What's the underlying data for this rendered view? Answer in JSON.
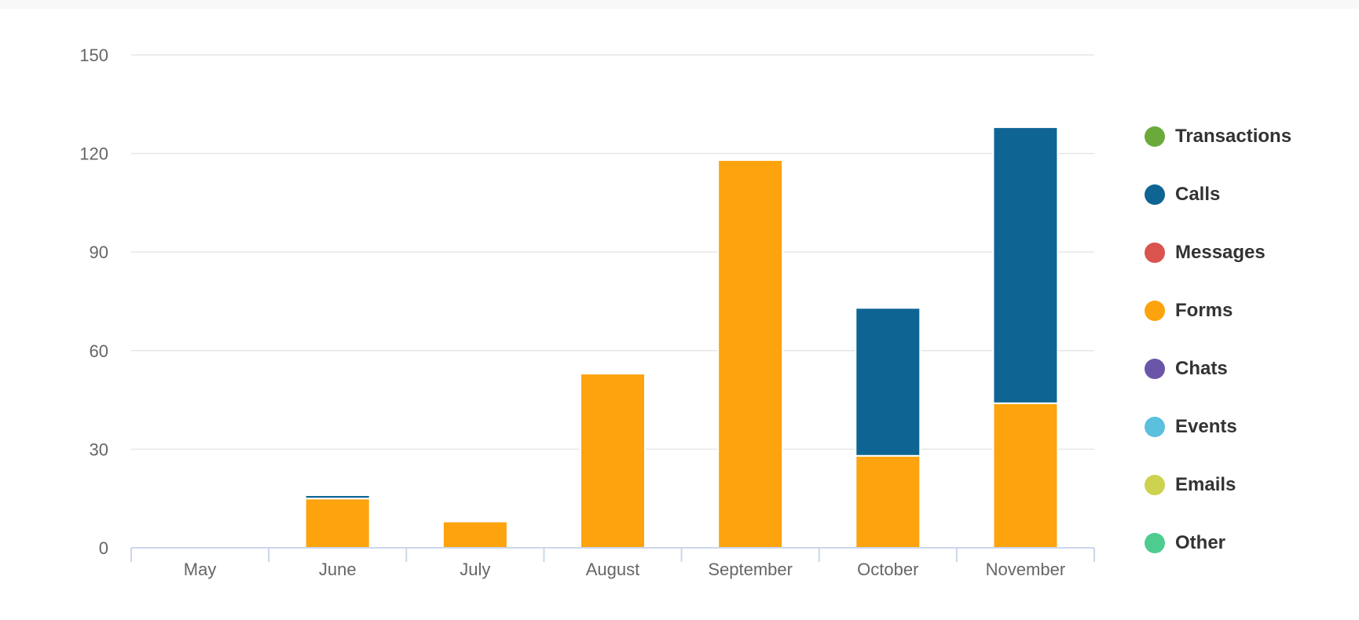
{
  "chart_data": {
    "type": "bar",
    "stacked": true,
    "categories": [
      "May",
      "June",
      "July",
      "August",
      "September",
      "October",
      "November"
    ],
    "ylim": [
      0,
      150
    ],
    "yticks": [
      0,
      30,
      60,
      90,
      120,
      150
    ],
    "grid": true,
    "legend_position": "right",
    "series": [
      {
        "name": "Transactions",
        "color": "#6aaa3a",
        "values": [
          0,
          0,
          0,
          0,
          0,
          0,
          0
        ]
      },
      {
        "name": "Calls",
        "color": "#0e6593",
        "values": [
          0,
          1,
          0,
          0,
          0,
          45,
          84
        ]
      },
      {
        "name": "Messages",
        "color": "#d9534f",
        "values": [
          0,
          0,
          0,
          0,
          0,
          0,
          0
        ]
      },
      {
        "name": "Forms",
        "color": "#fda30e",
        "values": [
          0,
          15,
          8,
          53,
          118,
          28,
          44
        ]
      },
      {
        "name": "Chats",
        "color": "#6b55a8",
        "values": [
          0,
          0,
          0,
          0,
          0,
          0,
          0
        ]
      },
      {
        "name": "Events",
        "color": "#5bc0de",
        "values": [
          0,
          0,
          0,
          0,
          0,
          0,
          0
        ]
      },
      {
        "name": "Emails",
        "color": "#cdd24f",
        "values": [
          0,
          0,
          0,
          0,
          0,
          0,
          0
        ]
      },
      {
        "name": "Other",
        "color": "#4ecc8f",
        "values": [
          0,
          0,
          0,
          0,
          0,
          0,
          0
        ]
      }
    ],
    "stack_order": [
      "Forms",
      "Calls",
      "Transactions",
      "Messages",
      "Chats",
      "Events",
      "Emails",
      "Other"
    ]
  }
}
